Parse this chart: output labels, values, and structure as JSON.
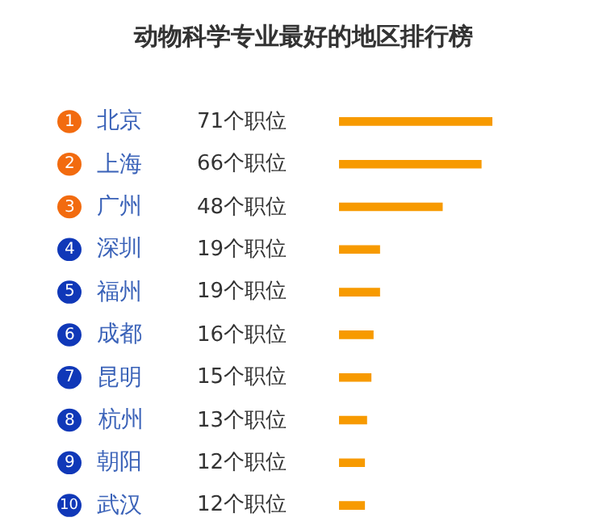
{
  "chart_data": {
    "type": "bar",
    "orientation": "horizontal",
    "title": "动物科学专业最好的地区排行榜",
    "categories": [
      "北京",
      "上海",
      "广州",
      "深圳",
      "福州",
      "成都",
      "昆明",
      "杭州",
      "朝阳",
      "武汉"
    ],
    "values": [
      71,
      66,
      48,
      19,
      19,
      16,
      15,
      13,
      12,
      12
    ],
    "value_labels": [
      "71个职位",
      "66个职位",
      "48个职位",
      "19个职位",
      "19个职位",
      "16个职位",
      "15个职位",
      "13个职位",
      "12个职位",
      "12个职位"
    ],
    "color": "#f79a00",
    "annotations": [
      "1",
      "2",
      "3",
      "4",
      "5",
      "6",
      "7",
      "8",
      "9",
      "10"
    ]
  }
}
